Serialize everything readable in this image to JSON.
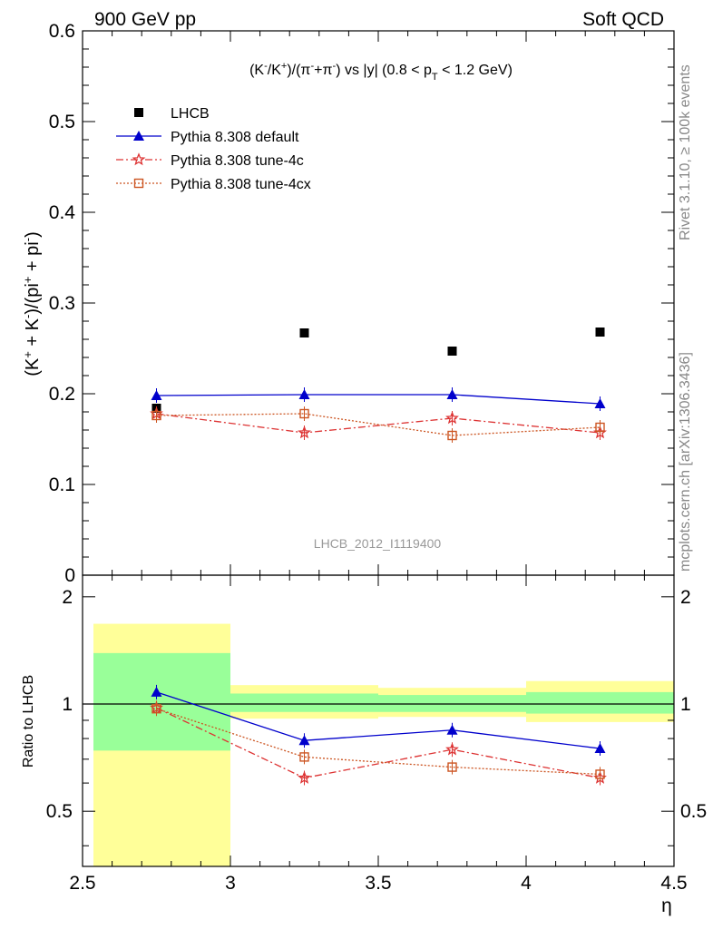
{
  "header": {
    "left": "900 GeV pp",
    "right": "Soft QCD"
  },
  "side_labels": {
    "rivet": "Rivet 3.1.10, ≥ 100k events",
    "source": "mcplots.cern.ch [arXiv:1306.3436]"
  },
  "watermark": "LHCB_2012_I1119400",
  "chart_data": {
    "type": "scatter",
    "title": "(K⁻/K⁺)/(π⁻+π⁻) vs |y| (0.8 < pT < 1.2 GeV)",
    "xlabel": "η",
    "ylabel": "(K⁺ + K⁻)/(pi⁺ + pi⁻)",
    "ratio_ylabel": "Ratio to LHCB",
    "xlim": [
      2.5,
      4.5
    ],
    "ylim": [
      0,
      0.6
    ],
    "ratio_ylim": [
      0.35,
      2.3
    ],
    "x_ticks": [
      "2.5",
      "3",
      "3.5",
      "4",
      "4.5"
    ],
    "y_ticks": [
      "0.1",
      "0.2",
      "0.3",
      "0.4",
      "0.5",
      "0.6"
    ],
    "ratio_ticks": [
      "0.5",
      "1",
      "2"
    ],
    "bins": [
      [
        2.5,
        3.0
      ],
      [
        3.0,
        3.5
      ],
      [
        3.5,
        4.0
      ],
      [
        4.0,
        4.5
      ]
    ],
    "x": [
      2.75,
      3.25,
      3.75,
      4.25
    ],
    "legend_placement": "top-left",
    "series": [
      {
        "name": "LHCB",
        "values": [
          0.184,
          0.267,
          0.247,
          0.268
        ],
        "color": "#000000",
        "marker": "square"
      },
      {
        "name": "Pythia 8.308 default",
        "values": [
          0.198,
          0.199,
          0.199,
          0.189
        ],
        "color": "#0000cc",
        "marker": "triangle"
      },
      {
        "name": "Pythia 8.308 tune-4c",
        "values": [
          0.178,
          0.157,
          0.173,
          0.157
        ],
        "color": "#dd3333",
        "marker": "star"
      },
      {
        "name": "Pythia 8.308 tune-4cx",
        "values": [
          0.176,
          0.178,
          0.154,
          0.163
        ],
        "color": "#cc5522",
        "marker": "open-square"
      }
    ],
    "ratio_series": [
      {
        "name": "Pythia 8.308 default",
        "values": [
          1.08,
          0.79,
          0.845,
          0.75
        ]
      },
      {
        "name": "Pythia 8.308 tune-4c",
        "values": [
          0.975,
          0.62,
          0.745,
          0.62
        ]
      },
      {
        "name": "Pythia 8.308 tune-4cx",
        "values": [
          0.97,
          0.71,
          0.665,
          0.635
        ]
      }
    ],
    "ratio_bands": {
      "stat": [
        [
          0.74,
          1.39
        ],
        [
          0.95,
          1.07
        ],
        [
          0.95,
          1.06
        ],
        [
          0.94,
          1.08
        ]
      ],
      "total": [
        [
          0.35,
          1.68
        ],
        [
          0.91,
          1.13
        ],
        [
          0.92,
          1.11
        ],
        [
          0.89,
          1.16
        ]
      ],
      "stat_color": "#99ff99",
      "total_color": "#ffff99"
    }
  }
}
